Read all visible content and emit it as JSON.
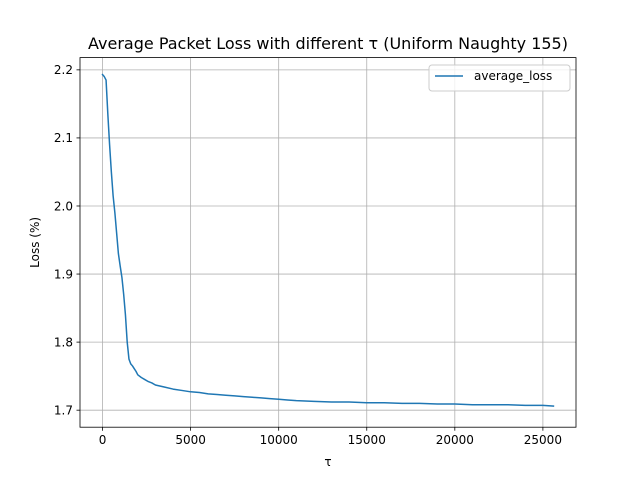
{
  "chart_data": {
    "type": "line",
    "title": "Average Packet Loss with different τ (Uniform Naughty 155)",
    "xlabel": "τ",
    "ylabel": "Loss (%)",
    "xlim": [
      -1280,
      26880
    ],
    "ylim": [
      1.675,
      2.218
    ],
    "xticks": [
      0,
      5000,
      10000,
      15000,
      20000,
      25000
    ],
    "yticks": [
      1.7,
      1.8,
      1.9,
      2.0,
      2.1,
      2.2
    ],
    "ytick_labels": [
      "1.7",
      "1.8",
      "1.9",
      "2.0",
      "2.1",
      "2.2"
    ],
    "grid": true,
    "legend": {
      "position": "upper right",
      "entries": [
        "average_loss"
      ]
    },
    "series": [
      {
        "name": "average_loss",
        "color": "#1f77b4",
        "x": [
          0,
          100,
          200,
          300,
          400,
          500,
          600,
          700,
          800,
          900,
          1000,
          1100,
          1200,
          1300,
          1400,
          1500,
          1600,
          1700,
          1800,
          1900,
          2000,
          2200,
          2400,
          2600,
          2800,
          3000,
          3500,
          4000,
          4500,
          5000,
          5500,
          6000,
          6500,
          7000,
          7500,
          8000,
          8500,
          9000,
          9500,
          10000,
          10500,
          11000,
          12000,
          13000,
          14000,
          15000,
          16000,
          17000,
          18000,
          19000,
          20000,
          21000,
          22000,
          23000,
          24000,
          25000,
          25600
        ],
        "y": [
          2.193,
          2.19,
          2.185,
          2.135,
          2.09,
          2.05,
          2.015,
          1.99,
          1.96,
          1.93,
          1.912,
          1.895,
          1.87,
          1.84,
          1.8,
          1.775,
          1.768,
          1.765,
          1.761,
          1.757,
          1.752,
          1.748,
          1.745,
          1.742,
          1.74,
          1.737,
          1.734,
          1.731,
          1.729,
          1.727,
          1.726,
          1.724,
          1.723,
          1.722,
          1.721,
          1.72,
          1.719,
          1.718,
          1.717,
          1.716,
          1.715,
          1.714,
          1.713,
          1.712,
          1.712,
          1.711,
          1.711,
          1.71,
          1.71,
          1.709,
          1.709,
          1.708,
          1.708,
          1.708,
          1.707,
          1.707,
          1.706
        ]
      }
    ]
  }
}
